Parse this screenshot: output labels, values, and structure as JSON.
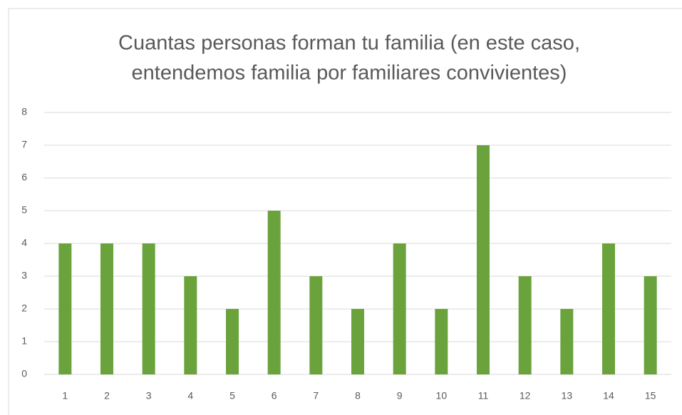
{
  "chart_data": {
    "type": "bar",
    "title": [
      "Cuantas personas forman tu familia (en este caso,",
      "entendemos familia por familiares convivientes)"
    ],
    "categories": [
      "1",
      "2",
      "3",
      "4",
      "5",
      "6",
      "7",
      "8",
      "9",
      "10",
      "11",
      "12",
      "13",
      "14",
      "15"
    ],
    "values": [
      4,
      4,
      4,
      3,
      2,
      5,
      3,
      2,
      4,
      2,
      7,
      3,
      2,
      4,
      3
    ],
    "color": "#6aa33c",
    "ylim": [
      0,
      8
    ],
    "yticks": [
      0,
      1,
      2,
      3,
      4,
      5,
      6,
      7,
      8
    ],
    "grid": true
  }
}
